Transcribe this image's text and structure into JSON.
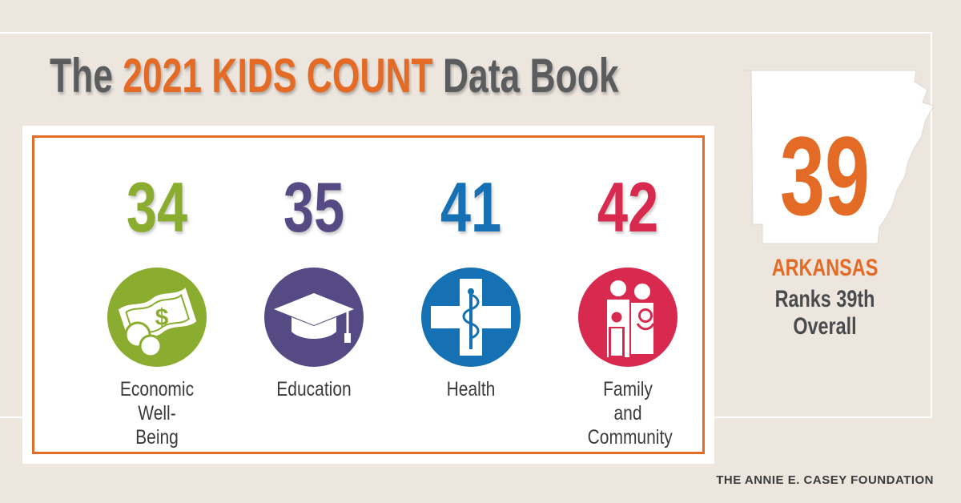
{
  "title": {
    "prefix": "The",
    "highlight": "2021 KIDS COUNT",
    "suffix": "Data Book"
  },
  "colors": {
    "accent": "#e36b25",
    "economic": "#8aac2f",
    "education": "#554a84",
    "health": "#1571b3",
    "family": "#d82a4f",
    "background": "#ede6df"
  },
  "domains": [
    {
      "rank": "34",
      "label": "Economic Well-Being",
      "icon": "money-icon"
    },
    {
      "rank": "35",
      "label": "Education",
      "icon": "graduation-cap-icon"
    },
    {
      "rank": "41",
      "label": "Health",
      "icon": "medical-cross-icon"
    },
    {
      "rank": "42",
      "label": "Family and Community",
      "icon": "family-icon"
    }
  ],
  "overall": {
    "rank": "39",
    "state": "ARKANSAS",
    "caption": "Ranks 39th Overall"
  },
  "footer": {
    "foundation": "THE ANNIE E. CASEY FOUNDATION"
  }
}
